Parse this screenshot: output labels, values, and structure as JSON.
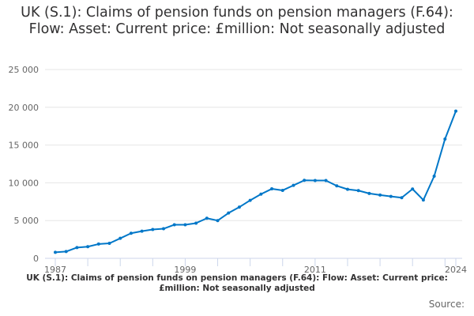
{
  "chart_data": {
    "type": "line",
    "title": "UK (S.1): Claims of pension funds on pension managers (F.64): Flow: Asset: Current price: £million: Not seasonally adjusted",
    "caption": "UK (S.1): Claims of pension funds on pension managers (F.64): Flow: Asset: Current price: £million: Not seasonally adjusted",
    "source_label": "Source:",
    "xlabel": "",
    "ylabel": "",
    "ylim": [
      0,
      25000
    ],
    "yticks": [
      "0",
      "5 000",
      "10 000",
      "15 000",
      "20 000",
      "25 000"
    ],
    "ytick_values": [
      0,
      5000,
      10000,
      15000,
      20000,
      25000
    ],
    "xticks": [
      "1987",
      "1999",
      "2011",
      "2024"
    ],
    "grid": true,
    "legend": "none",
    "color": "#0077c8",
    "x": [
      1987,
      1988,
      1989,
      1990,
      1991,
      1992,
      1993,
      1994,
      1995,
      1996,
      1997,
      1998,
      1999,
      2000,
      2001,
      2002,
      2003,
      2004,
      2005,
      2006,
      2007,
      2008,
      2009,
      2010,
      2011,
      2012,
      2013,
      2014,
      2015,
      2016,
      2017,
      2018,
      2019,
      2020,
      2021,
      2022,
      2023,
      2024
    ],
    "values": [
      800,
      900,
      1430,
      1540,
      1890,
      1990,
      2650,
      3320,
      3600,
      3820,
      3920,
      4450,
      4450,
      4660,
      5310,
      5000,
      6000,
      6780,
      7680,
      8500,
      9200,
      9000,
      9660,
      10330,
      10300,
      10300,
      9600,
      9140,
      8970,
      8590,
      8380,
      8200,
      8030,
      9180,
      7720,
      10880,
      15800,
      19500
    ]
  }
}
